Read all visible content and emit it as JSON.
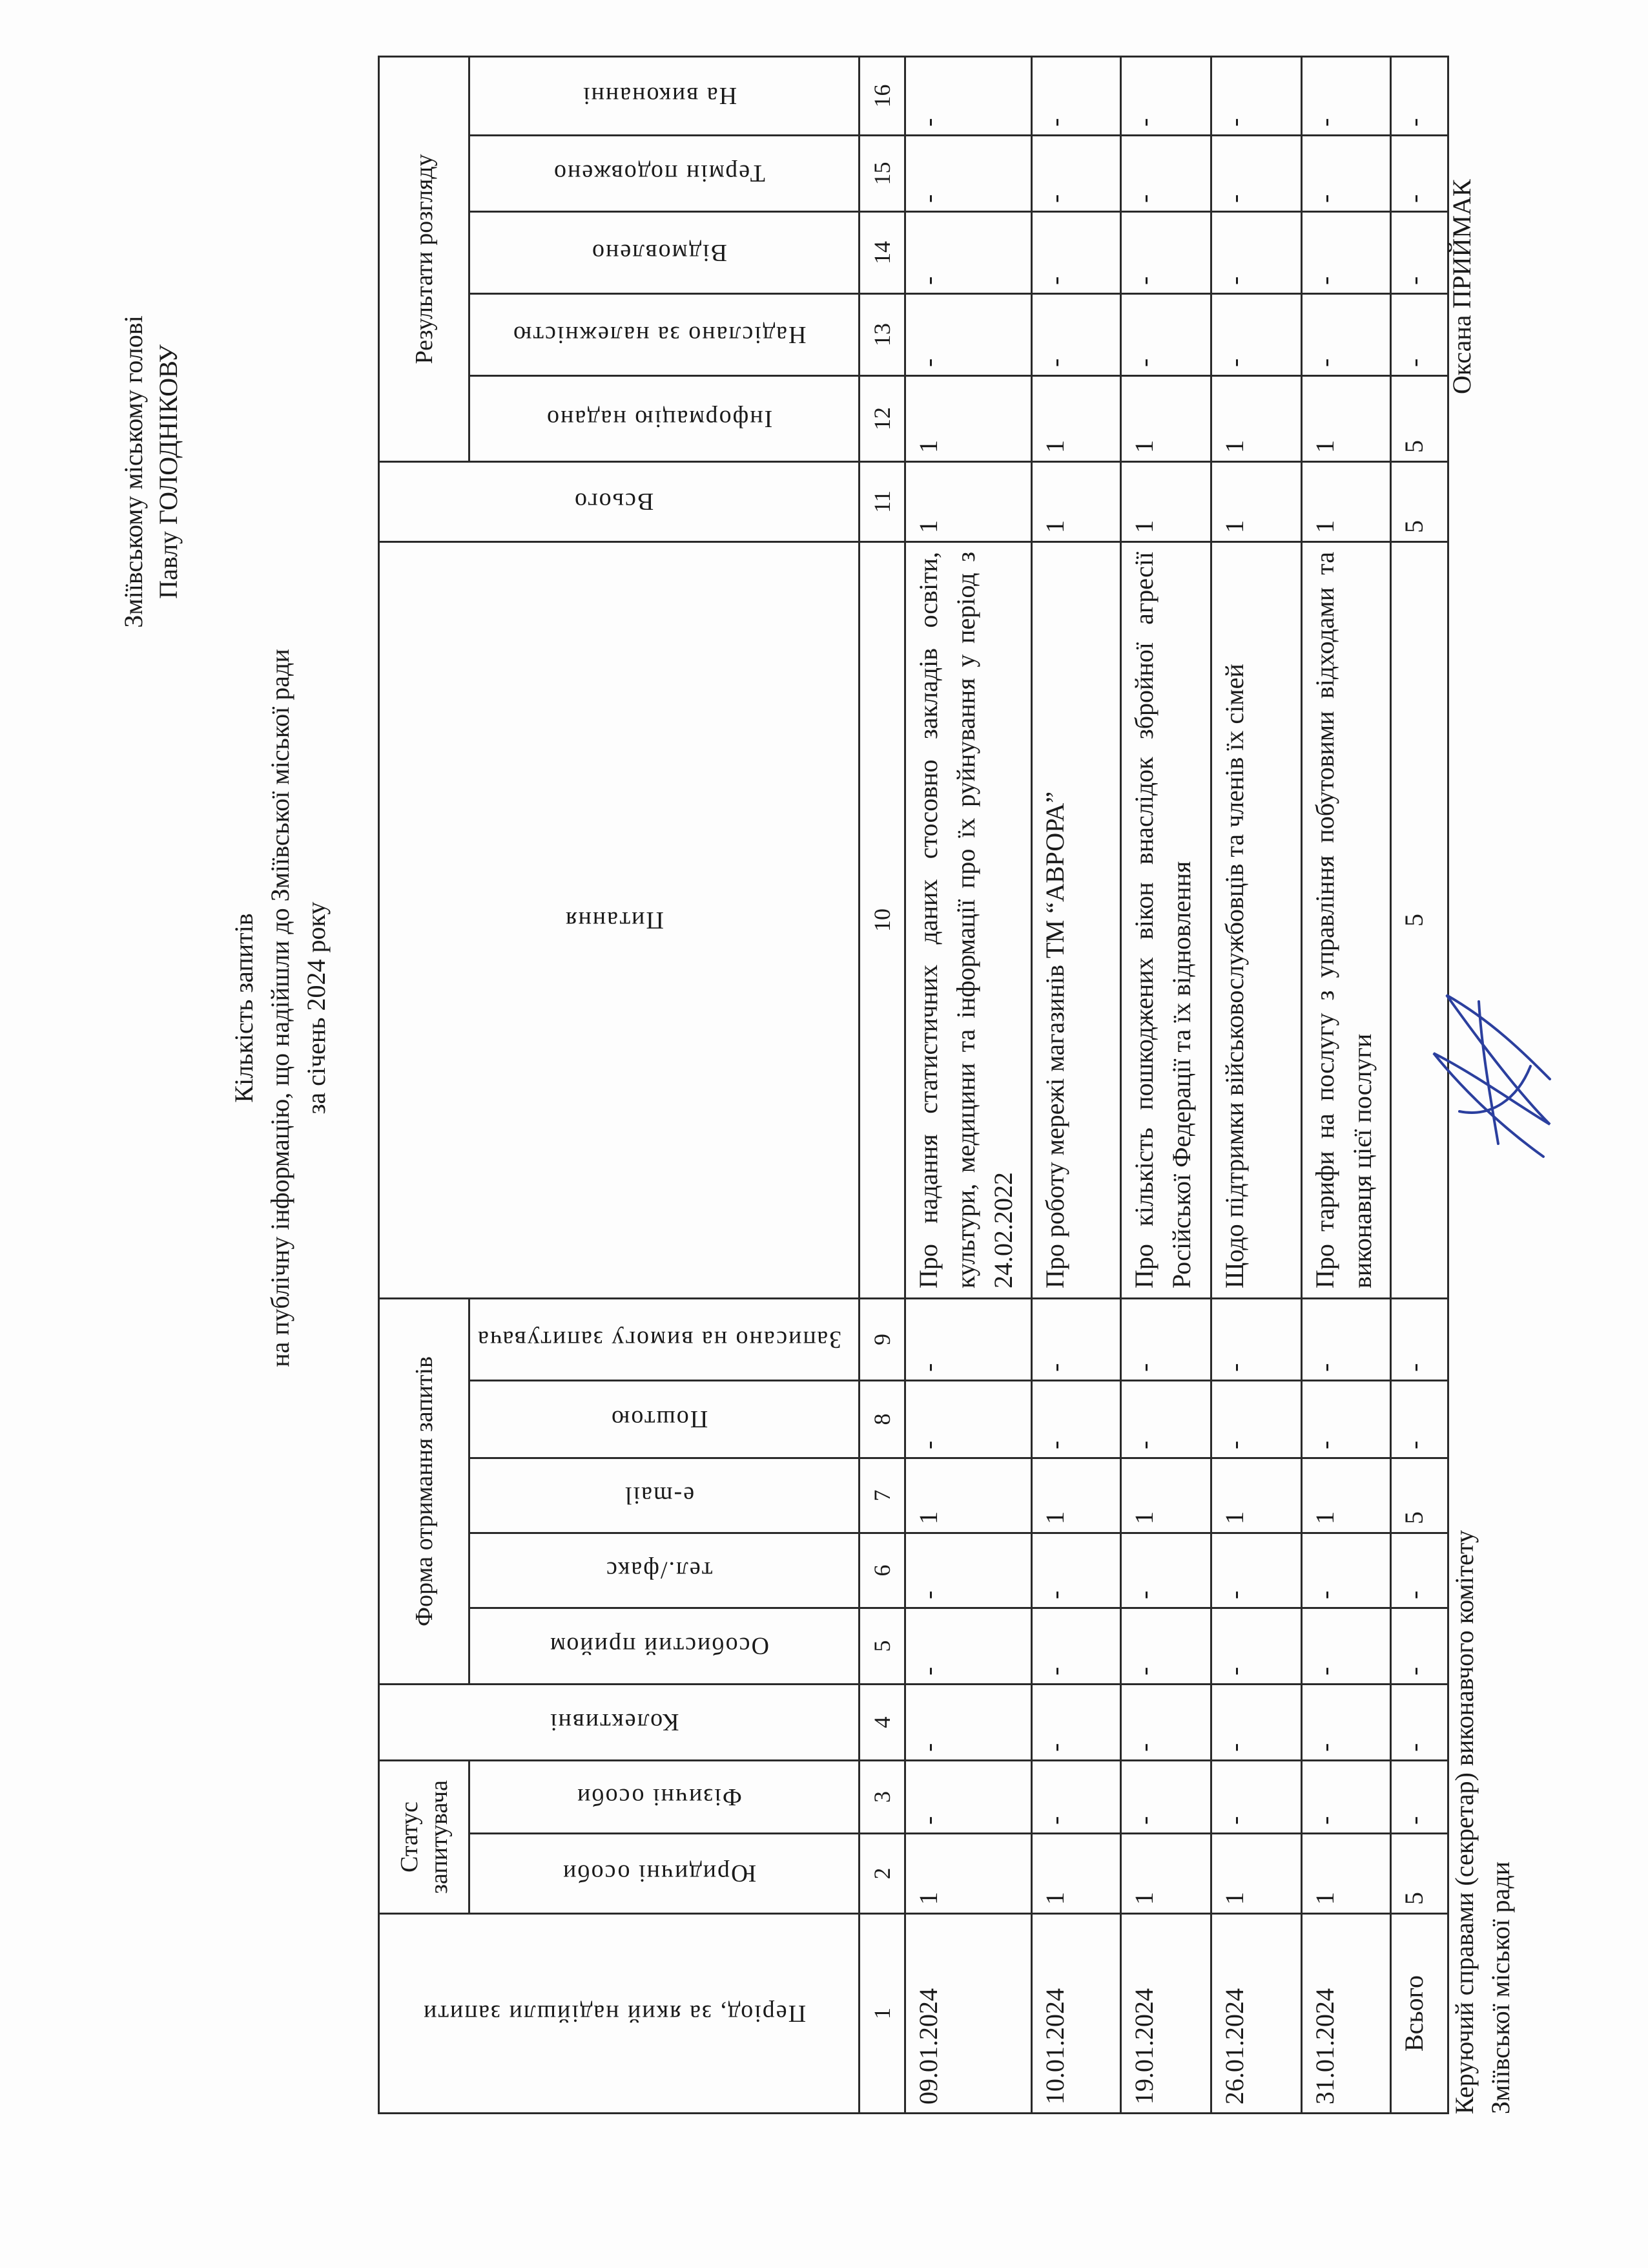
{
  "addressee": {
    "line1": "Зміївському міському голові",
    "line2": "Павлу ГОЛОДНІКОВУ"
  },
  "title": {
    "line1": "Кількість запитів",
    "line2": "на публічну інформацію, що надійшли до Зміївської міської ради",
    "line3": "за січень  2024 року"
  },
  "table": {
    "headers": {
      "period": "Період, за який надійшли запити",
      "status_group": "Статус запитувача",
      "legal": "Юридичні особи",
      "physical": "Фізичні особи",
      "collective": "Колективні",
      "form_group": "Форма отримання запитів",
      "personal": "Особистий прийом",
      "phone": "тел./факс",
      "email": "e-mail",
      "post": "Поштою",
      "recorded": "Записано на вимогу запитувача",
      "question": "Питання",
      "total": "Всього",
      "results_group": "Результати розгляду",
      "provided": "Інформацію надано",
      "forwarded": "Надіслано за належністю",
      "refused": "Відмовлено",
      "extended": "Термін подовжено",
      "in_progress": "На виконанні"
    },
    "column_numbers": [
      "1",
      "2",
      "3",
      "4",
      "5",
      "6",
      "7",
      "8",
      "9",
      "10",
      "11",
      "12",
      "13",
      "14",
      "15",
      "16"
    ],
    "rows": [
      [
        "09.01.2024",
        "1",
        "-",
        "-",
        "-",
        "-",
        "1",
        "-",
        "-",
        "Про надання статистичних даних стосовно закладів освіти, культури, медицини та інформації про їх руйнування у період з 24.02.2022",
        "1",
        "1",
        "-",
        "-",
        "-",
        "-"
      ],
      [
        "10.01.2024",
        "1",
        "-",
        "-",
        "-",
        "-",
        "1",
        "-",
        "-",
        "Про роботу мережі магазинів ТМ “АВРОРА”",
        "1",
        "1",
        "-",
        "-",
        "-",
        "-"
      ],
      [
        "19.01.2024",
        "1",
        "-",
        "-",
        "-",
        "-",
        "1",
        "-",
        "-",
        "Про кількість пошкоджених вікон внаслідок збройної агресії Російської Федерації та їх відновлення",
        "1",
        "1",
        "-",
        "-",
        "-",
        "-"
      ],
      [
        "26.01.2024",
        "1",
        "-",
        "-",
        "-",
        "-",
        "1",
        "-",
        "-",
        "Щодо підтримки військовослужбовців та членів їх сімей",
        "1",
        "1",
        "-",
        "-",
        "-",
        "-"
      ],
      [
        "31.01.2024",
        "1",
        "-",
        "-",
        "-",
        "-",
        "1",
        "-",
        "-",
        "Про тарифи на послугу з управління побутовими відходами та виконавця цієї послуги",
        "1",
        "1",
        "-",
        "-",
        "-",
        "-"
      ]
    ],
    "total_row": [
      "Всього",
      "5",
      "-",
      "-",
      "-",
      "-",
      "5",
      "-",
      "-",
      "5",
      "5",
      "5",
      "-",
      "-",
      "-",
      "-"
    ]
  },
  "footer": {
    "position_line1": "Керуючий справами (секретар) виконавчого комітету",
    "position_line2": "Зміївської міської ради",
    "name": "Оксана ПРИЙМАК"
  },
  "colors": {
    "ink": "#1a1a1a",
    "signature": "#2b3f9e"
  }
}
